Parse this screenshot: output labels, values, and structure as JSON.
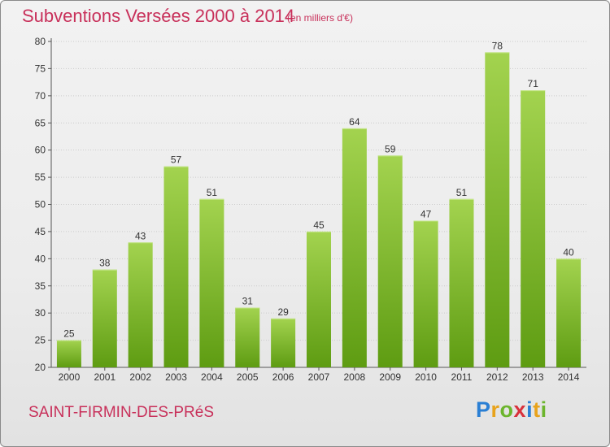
{
  "chart_data": {
    "type": "bar",
    "title": "Subventions Versées 2000 à 2014",
    "subtitle": "(en milliers d'€)",
    "categories": [
      "2000",
      "2001",
      "2002",
      "2003",
      "2004",
      "2005",
      "2006",
      "2007",
      "2008",
      "2009",
      "2010",
      "2011",
      "2012",
      "2013",
      "2014"
    ],
    "values": [
      25,
      38,
      43,
      57,
      51,
      31,
      29,
      45,
      64,
      59,
      47,
      51,
      78,
      71,
      40
    ],
    "xlabel": "",
    "ylabel": "",
    "ylim": [
      20,
      80
    ],
    "yticks": [
      20,
      25,
      30,
      35,
      40,
      45,
      50,
      55,
      60,
      65,
      70,
      75,
      80
    ],
    "grid": true,
    "legend": "none",
    "colors": {
      "bar_light": "#a3d34f",
      "bar_dark": "#5e9c12",
      "text_accent": "#c8305a",
      "grid": "#cccccc"
    }
  },
  "commune": "SAINT-FIRMIN-DES-PRéS",
  "brand": {
    "letters": [
      "P",
      "r",
      "o",
      "x",
      "i",
      "t",
      "i"
    ],
    "colors": [
      "#2a7fd4",
      "#e8a31c",
      "#6cb52d",
      "#d8323c",
      "#2a7fd4",
      "#e8a31c",
      "#6cb52d"
    ]
  }
}
